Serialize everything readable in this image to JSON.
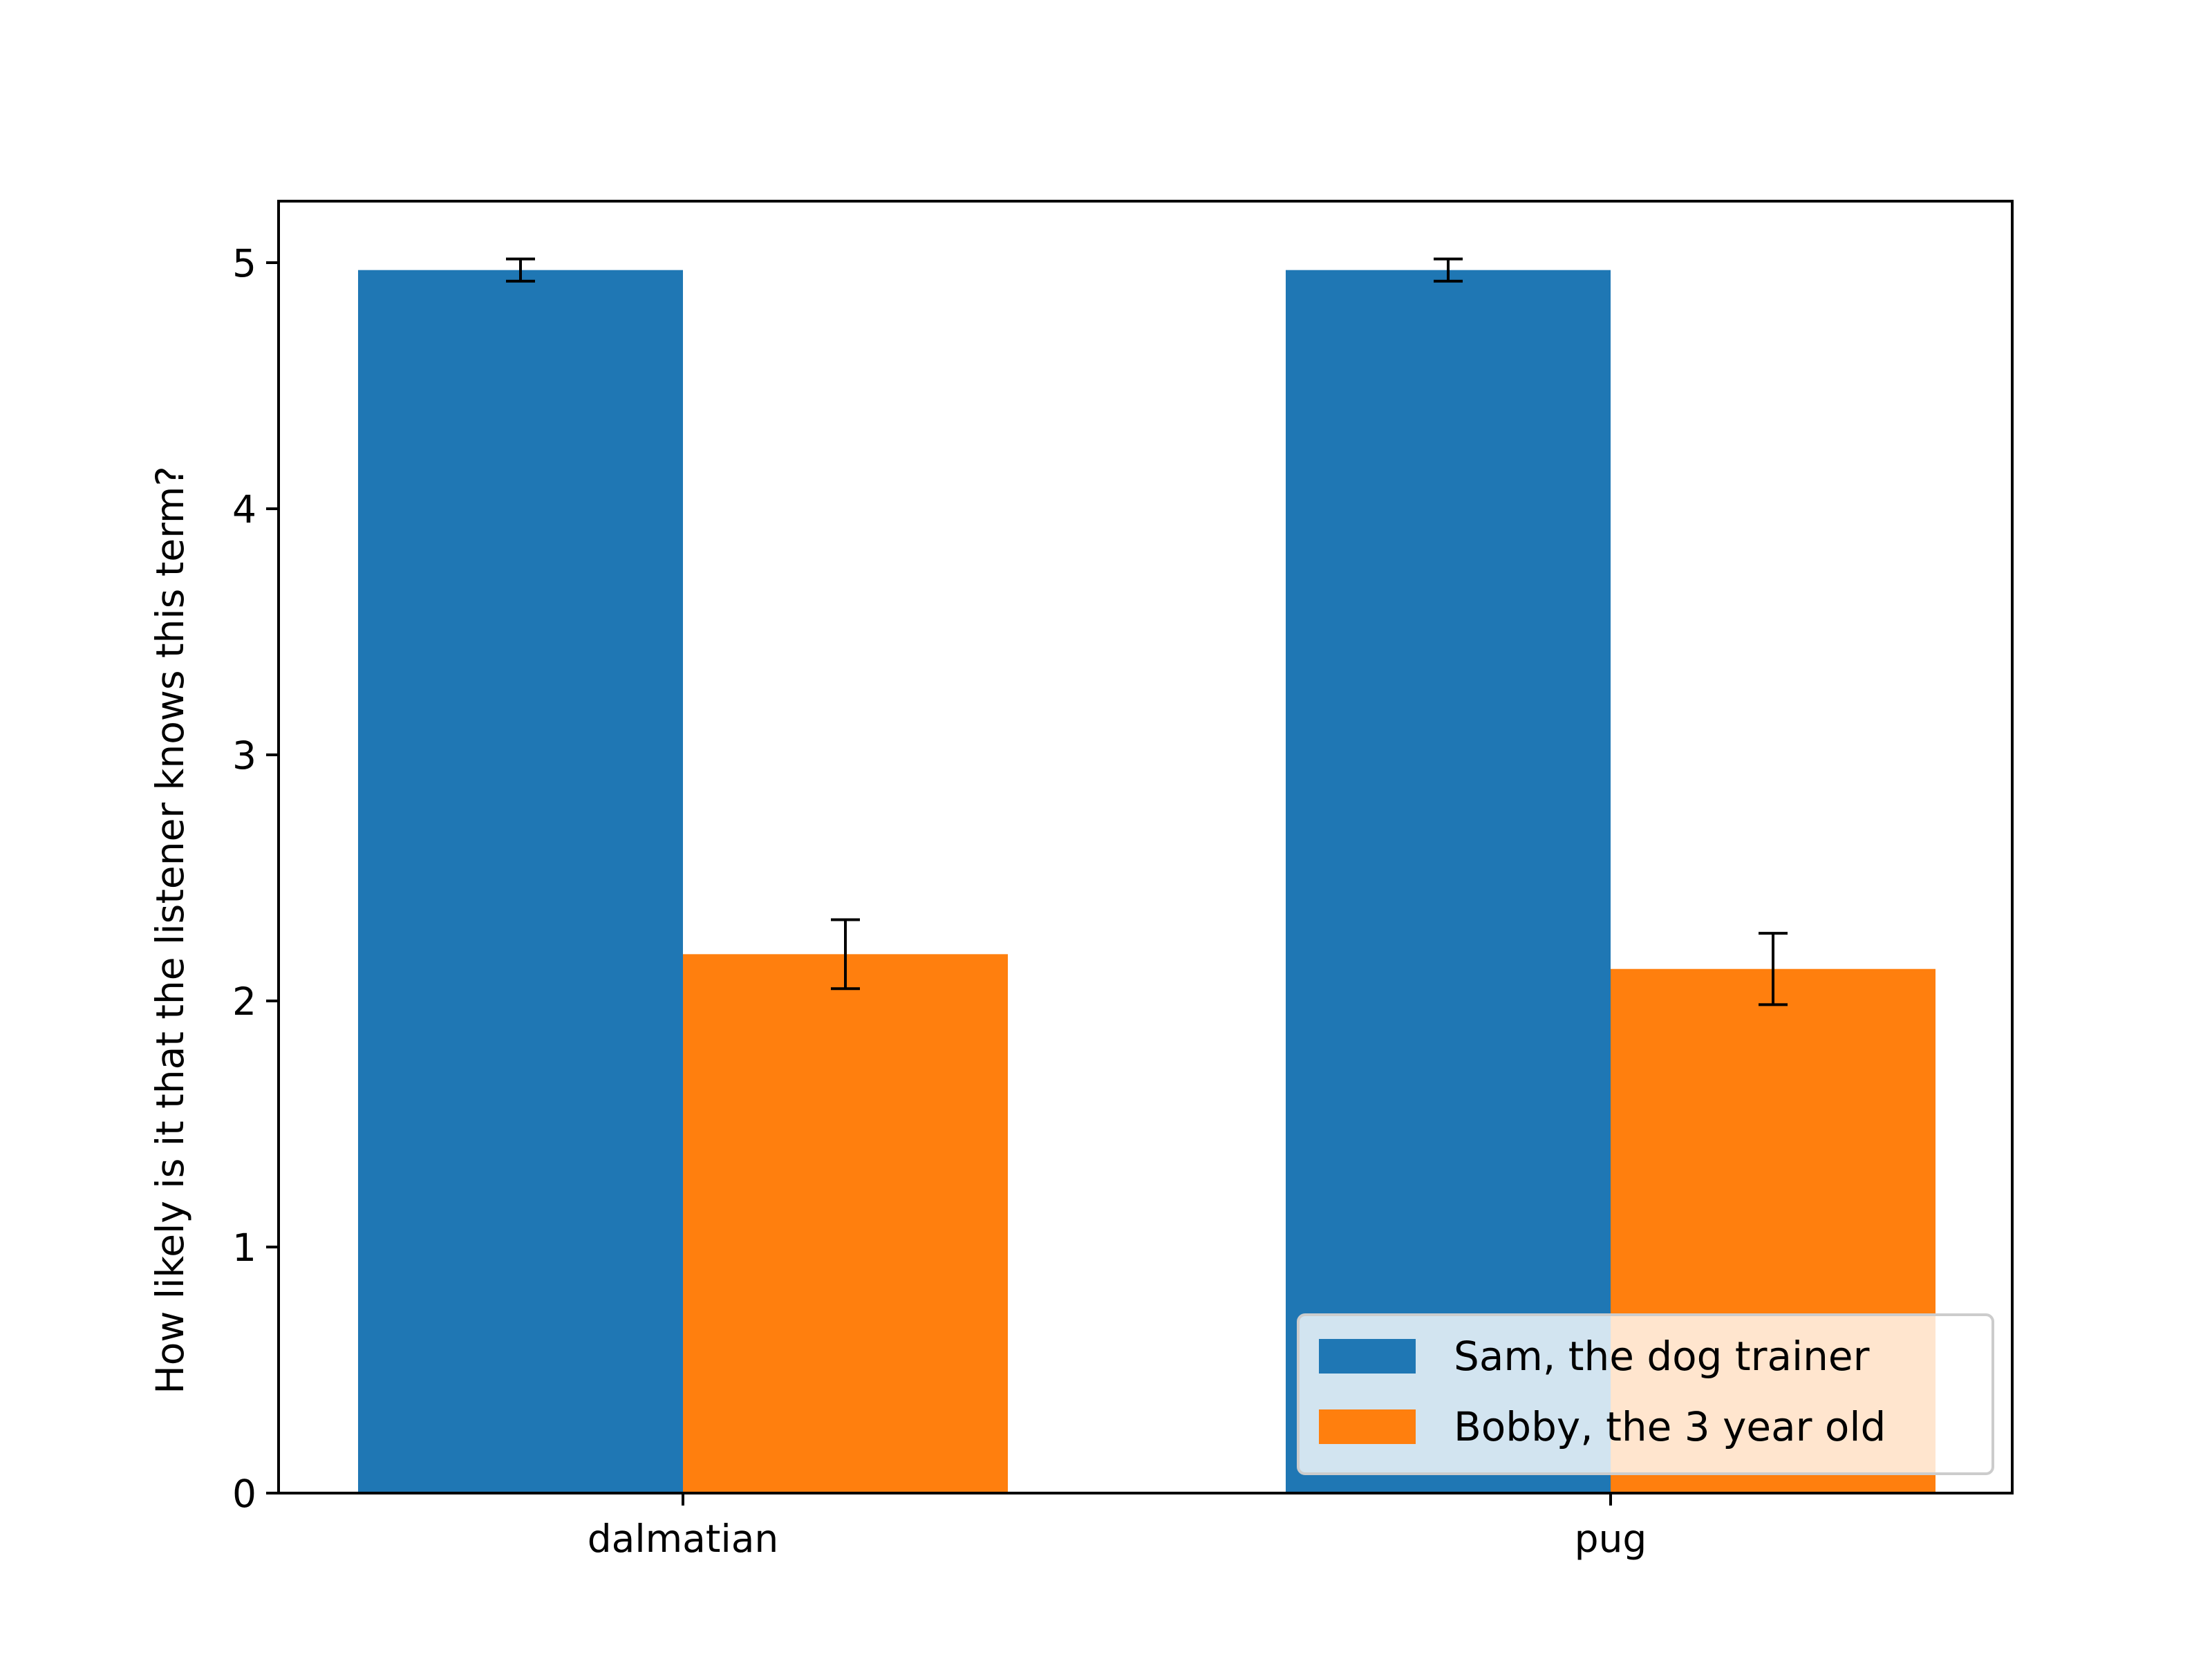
{
  "chart_data": {
    "type": "bar",
    "title": "",
    "xlabel": "",
    "ylabel": "How likely is it that the listener knows this term?",
    "categories": [
      "dalmatian",
      "pug"
    ],
    "series": [
      {
        "name": "Sam, the dog trainer",
        "color": "#1f77b4",
        "values": [
          4.97,
          4.97
        ],
        "errors": [
          0.045,
          0.045
        ]
      },
      {
        "name": "Bobby, the 3 year old",
        "color": "#ff7f0e",
        "values": [
          2.19,
          2.13
        ],
        "errors": [
          0.14,
          0.145
        ]
      }
    ],
    "ylim": [
      0,
      5.25
    ],
    "yticks": [
      "0",
      "1",
      "2",
      "3",
      "4",
      "5"
    ],
    "grid": false,
    "legend_position": "lower right",
    "error_bar_color": "#000000"
  }
}
